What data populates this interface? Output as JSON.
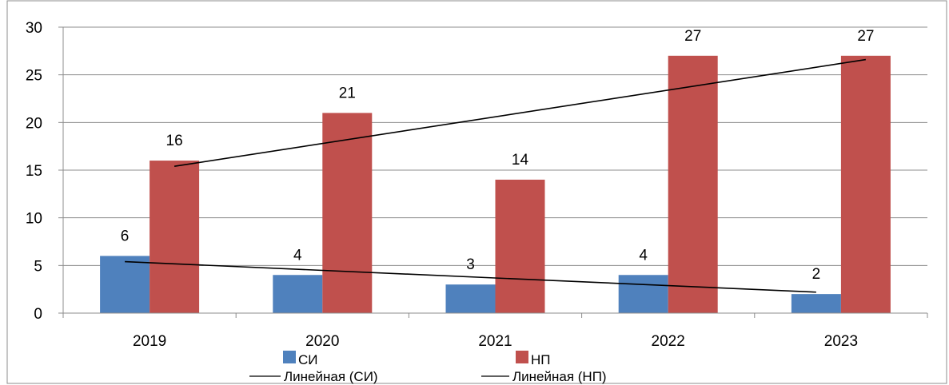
{
  "chart_data": {
    "type": "bar",
    "categories": [
      "2019",
      "2020",
      "2021",
      "2022",
      "2023"
    ],
    "series": [
      {
        "name": "СИ",
        "values": [
          6,
          4,
          3,
          4,
          2
        ],
        "color": "#4f81bd"
      },
      {
        "name": "НП",
        "values": [
          16,
          21,
          14,
          27,
          27
        ],
        "color": "#c0504d"
      }
    ],
    "trendlines": [
      {
        "name": "Линейная (СИ)",
        "of_series": "СИ",
        "type": "linear",
        "color": "#000000"
      },
      {
        "name": "Линейная (НП)",
        "of_series": "НП",
        "type": "linear",
        "color": "#000000"
      }
    ],
    "ylim": [
      0,
      30
    ],
    "yticks": [
      0,
      5,
      10,
      15,
      20,
      25,
      30
    ],
    "grid": true,
    "data_labels": true,
    "legend_position": "bottom",
    "title": "",
    "xlabel": "",
    "ylabel": ""
  }
}
